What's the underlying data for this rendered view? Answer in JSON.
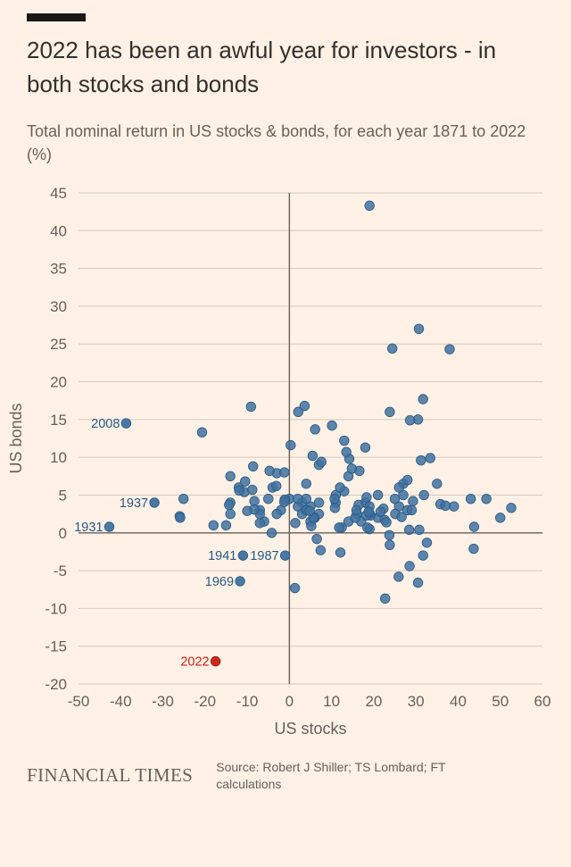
{
  "page": {
    "title": "2022 has been an awful year for investors - in both stocks and bonds",
    "subtitle": "Total nominal return in US stocks & bonds, for each year 1871 to 2022 (%)",
    "footer_logo": "FINANCIAL TIMES",
    "source": "Source: Robert J Shiller; TS Lombard; FT calculations"
  },
  "colors": {
    "background": "#fff1e5",
    "title_text": "#33302e",
    "muted_text": "#66605c",
    "accent_bar": "#1a1817"
  },
  "chart_data": {
    "type": "scatter",
    "title": "2022 has been an awful year for investors - in both stocks and bonds",
    "subtitle": "Total nominal return in US stocks & bonds, for each year 1871 to 2022 (%)",
    "xlabel": "US stocks",
    "ylabel": "US bonds",
    "xlim": [
      -50,
      60
    ],
    "ylim": [
      -20,
      45
    ],
    "xticks": [
      -50,
      -40,
      -30,
      -20,
      -10,
      0,
      10,
      20,
      30,
      40,
      50,
      60
    ],
    "yticks": [
      45,
      40,
      35,
      30,
      25,
      20,
      15,
      10,
      5,
      0,
      -5,
      -10,
      -15,
      -20
    ],
    "grid": true,
    "grid_color": "#d6cabb",
    "axis_color": "#66605c",
    "tick_color": "#66605c",
    "point_color": "#41719f",
    "point_stroke": "#265a87",
    "label_color": "#265a87",
    "highlight_color": "#c82014",
    "highlight_stroke": "#9b170d",
    "labeled_points": [
      {
        "label": "2008",
        "x": -38.7,
        "y": 14.5,
        "highlight": false
      },
      {
        "label": "1937",
        "x": -32.0,
        "y": 4.0,
        "highlight": false
      },
      {
        "label": "1931",
        "x": -42.7,
        "y": 0.8,
        "highlight": false
      },
      {
        "label": "1941",
        "x": -11.0,
        "y": -3.0,
        "highlight": false
      },
      {
        "label": "1987",
        "x": -1.0,
        "y": -3.0,
        "highlight": false
      },
      {
        "label": "1969",
        "x": -11.7,
        "y": -6.4,
        "highlight": false
      },
      {
        "label": "2022",
        "x": -17.5,
        "y": -17.0,
        "highlight": true
      }
    ],
    "points": [
      [
        14,
        7.5
      ],
      [
        11,
        5
      ],
      [
        -3,
        7.9
      ],
      [
        7,
        9
      ],
      [
        4,
        6.5
      ],
      [
        -14,
        7.5
      ],
      [
        -4,
        6
      ],
      [
        13,
        5.5
      ],
      [
        43,
        4.5
      ],
      [
        27,
        5
      ],
      [
        0,
        4.5
      ],
      [
        3,
        4
      ],
      [
        -5,
        4.5
      ],
      [
        -12,
        6
      ],
      [
        27,
        6.5
      ],
      [
        11,
        4
      ],
      [
        -2,
        3
      ],
      [
        2,
        3.5
      ],
      [
        7,
        4
      ],
      [
        -7,
        3
      ],
      [
        21,
        5
      ],
      [
        5,
        3.5
      ],
      [
        -14,
        4
      ],
      [
        4,
        4.5
      ],
      [
        4,
        3
      ],
      [
        2,
        4.5
      ],
      [
        18,
        4
      ],
      [
        26,
        3.5
      ],
      [
        3,
        2.5
      ],
      [
        19,
        3.5
      ],
      [
        16,
        2.5
      ],
      [
        6,
        2
      ],
      [
        -14,
        2.5
      ],
      [
        28,
        3
      ],
      [
        21,
        2
      ],
      [
        5,
        1.5
      ],
      [
        -26,
        2.2
      ],
      [
        39,
        3.5
      ],
      [
        14,
        1.5
      ],
      [
        -3,
        2.5
      ],
      [
        4,
        3
      ],
      [
        6,
        2
      ],
      [
        -6,
        1.5
      ],
      [
        -7,
        2.5
      ],
      [
        29,
        3
      ],
      [
        7,
        2.5
      ],
      [
        -18,
        1
      ],
      [
        17,
        1.5
      ],
      [
        19,
        0.5
      ],
      [
        -15,
        1
      ],
      [
        13,
        12.2
      ],
      [
        28,
        7
      ],
      [
        4,
        3
      ],
      [
        26,
        6
      ],
      [
        25,
        4.5
      ],
      [
        12,
        6
      ],
      [
        35,
        6.5
      ],
      [
        43.8,
        0.8
      ],
      [
        -8.3,
        4.2
      ],
      [
        -25.1,
        4.5
      ],
      [
        -8.6,
        8.8
      ],
      [
        50,
        2
      ],
      [
        -1.2,
        8
      ],
      [
        46.7,
        4.5
      ],
      [
        31.9,
        5
      ],
      [
        29.3,
        4.2
      ],
      [
        -1.1,
        4.4
      ],
      [
        -10.7,
        5.4
      ],
      [
        19.2,
        2.3
      ],
      [
        25.1,
        2.5
      ],
      [
        19,
        2.6
      ],
      [
        35.8,
        3.8
      ],
      [
        -8.4,
        3.1
      ],
      [
        5.2,
        0.9
      ],
      [
        5.7,
        2
      ],
      [
        18.3,
        4.7
      ],
      [
        30.8,
        0.4
      ],
      [
        23.7,
        -0.3
      ],
      [
        18.2,
        2.3
      ],
      [
        -1.2,
        4.1
      ],
      [
        52.6,
        3.3
      ],
      [
        32.6,
        -1.3
      ],
      [
        7.4,
        -2.3
      ],
      [
        -10.5,
        6.8
      ],
      [
        43.7,
        -2.1
      ],
      [
        12.1,
        -2.6
      ],
      [
        0.3,
        11.6
      ],
      [
        26.6,
        2.1
      ],
      [
        -8.8,
        5.7
      ],
      [
        22.6,
        1.7
      ],
      [
        16.4,
        3.7
      ],
      [
        12.4,
        0.7
      ],
      [
        -10,
        2.9
      ],
      [
        23.8,
        -1.6
      ],
      [
        10.8,
        3.3
      ],
      [
        3.6,
        16.8
      ],
      [
        14.2,
        9.8
      ],
      [
        18.8,
        2.8
      ],
      [
        -14.3,
        3.7
      ],
      [
        -25.9,
        2
      ],
      [
        37,
        3.6
      ],
      [
        23.8,
        16
      ],
      [
        -7,
        1.3
      ],
      [
        6.5,
        -0.8
      ],
      [
        18.5,
        0.7
      ],
      [
        31.7,
        -3
      ],
      [
        -4.7,
        8.2
      ],
      [
        19,
        43.3
      ],
      [
        22.3,
        3.2
      ],
      [
        6.1,
        13.7
      ],
      [
        30.7,
        27
      ],
      [
        24.4,
        24.4
      ],
      [
        16.6,
        8.2
      ],
      [
        31.7,
        17.7
      ],
      [
        -3.1,
        6.2
      ],
      [
        30.5,
        15
      ],
      [
        7.6,
        9.4
      ],
      [
        10.1,
        14.2
      ],
      [
        1.3,
        -7.3
      ],
      [
        38,
        24.3
      ],
      [
        23,
        1.4
      ],
      [
        33.4,
        9.9
      ],
      [
        28.6,
        14.9
      ],
      [
        22.7,
        -8.7
      ],
      [
        -9.1,
        16.7
      ],
      [
        -11.9,
        5.6
      ],
      [
        -20.7,
        13.3
      ],
      [
        28.4,
        0.4
      ],
      [
        10.7,
        4.5
      ],
      [
        4.8,
        2.9
      ],
      [
        15.6,
        2
      ],
      [
        5.5,
        10.2
      ],
      [
        25.9,
        -5.8
      ],
      [
        14.8,
        8.5
      ],
      [
        2.1,
        16
      ],
      [
        15.9,
        3
      ],
      [
        30.5,
        -6.6
      ],
      [
        13.5,
        10.7
      ],
      [
        1.4,
        1.3
      ],
      [
        11.8,
        0.7
      ],
      [
        21.6,
        2.8
      ],
      [
        -4.2,
        0
      ],
      [
        31.2,
        9.6
      ],
      [
        18,
        11.3
      ],
      [
        28.5,
        -4.4
      ]
    ]
  }
}
